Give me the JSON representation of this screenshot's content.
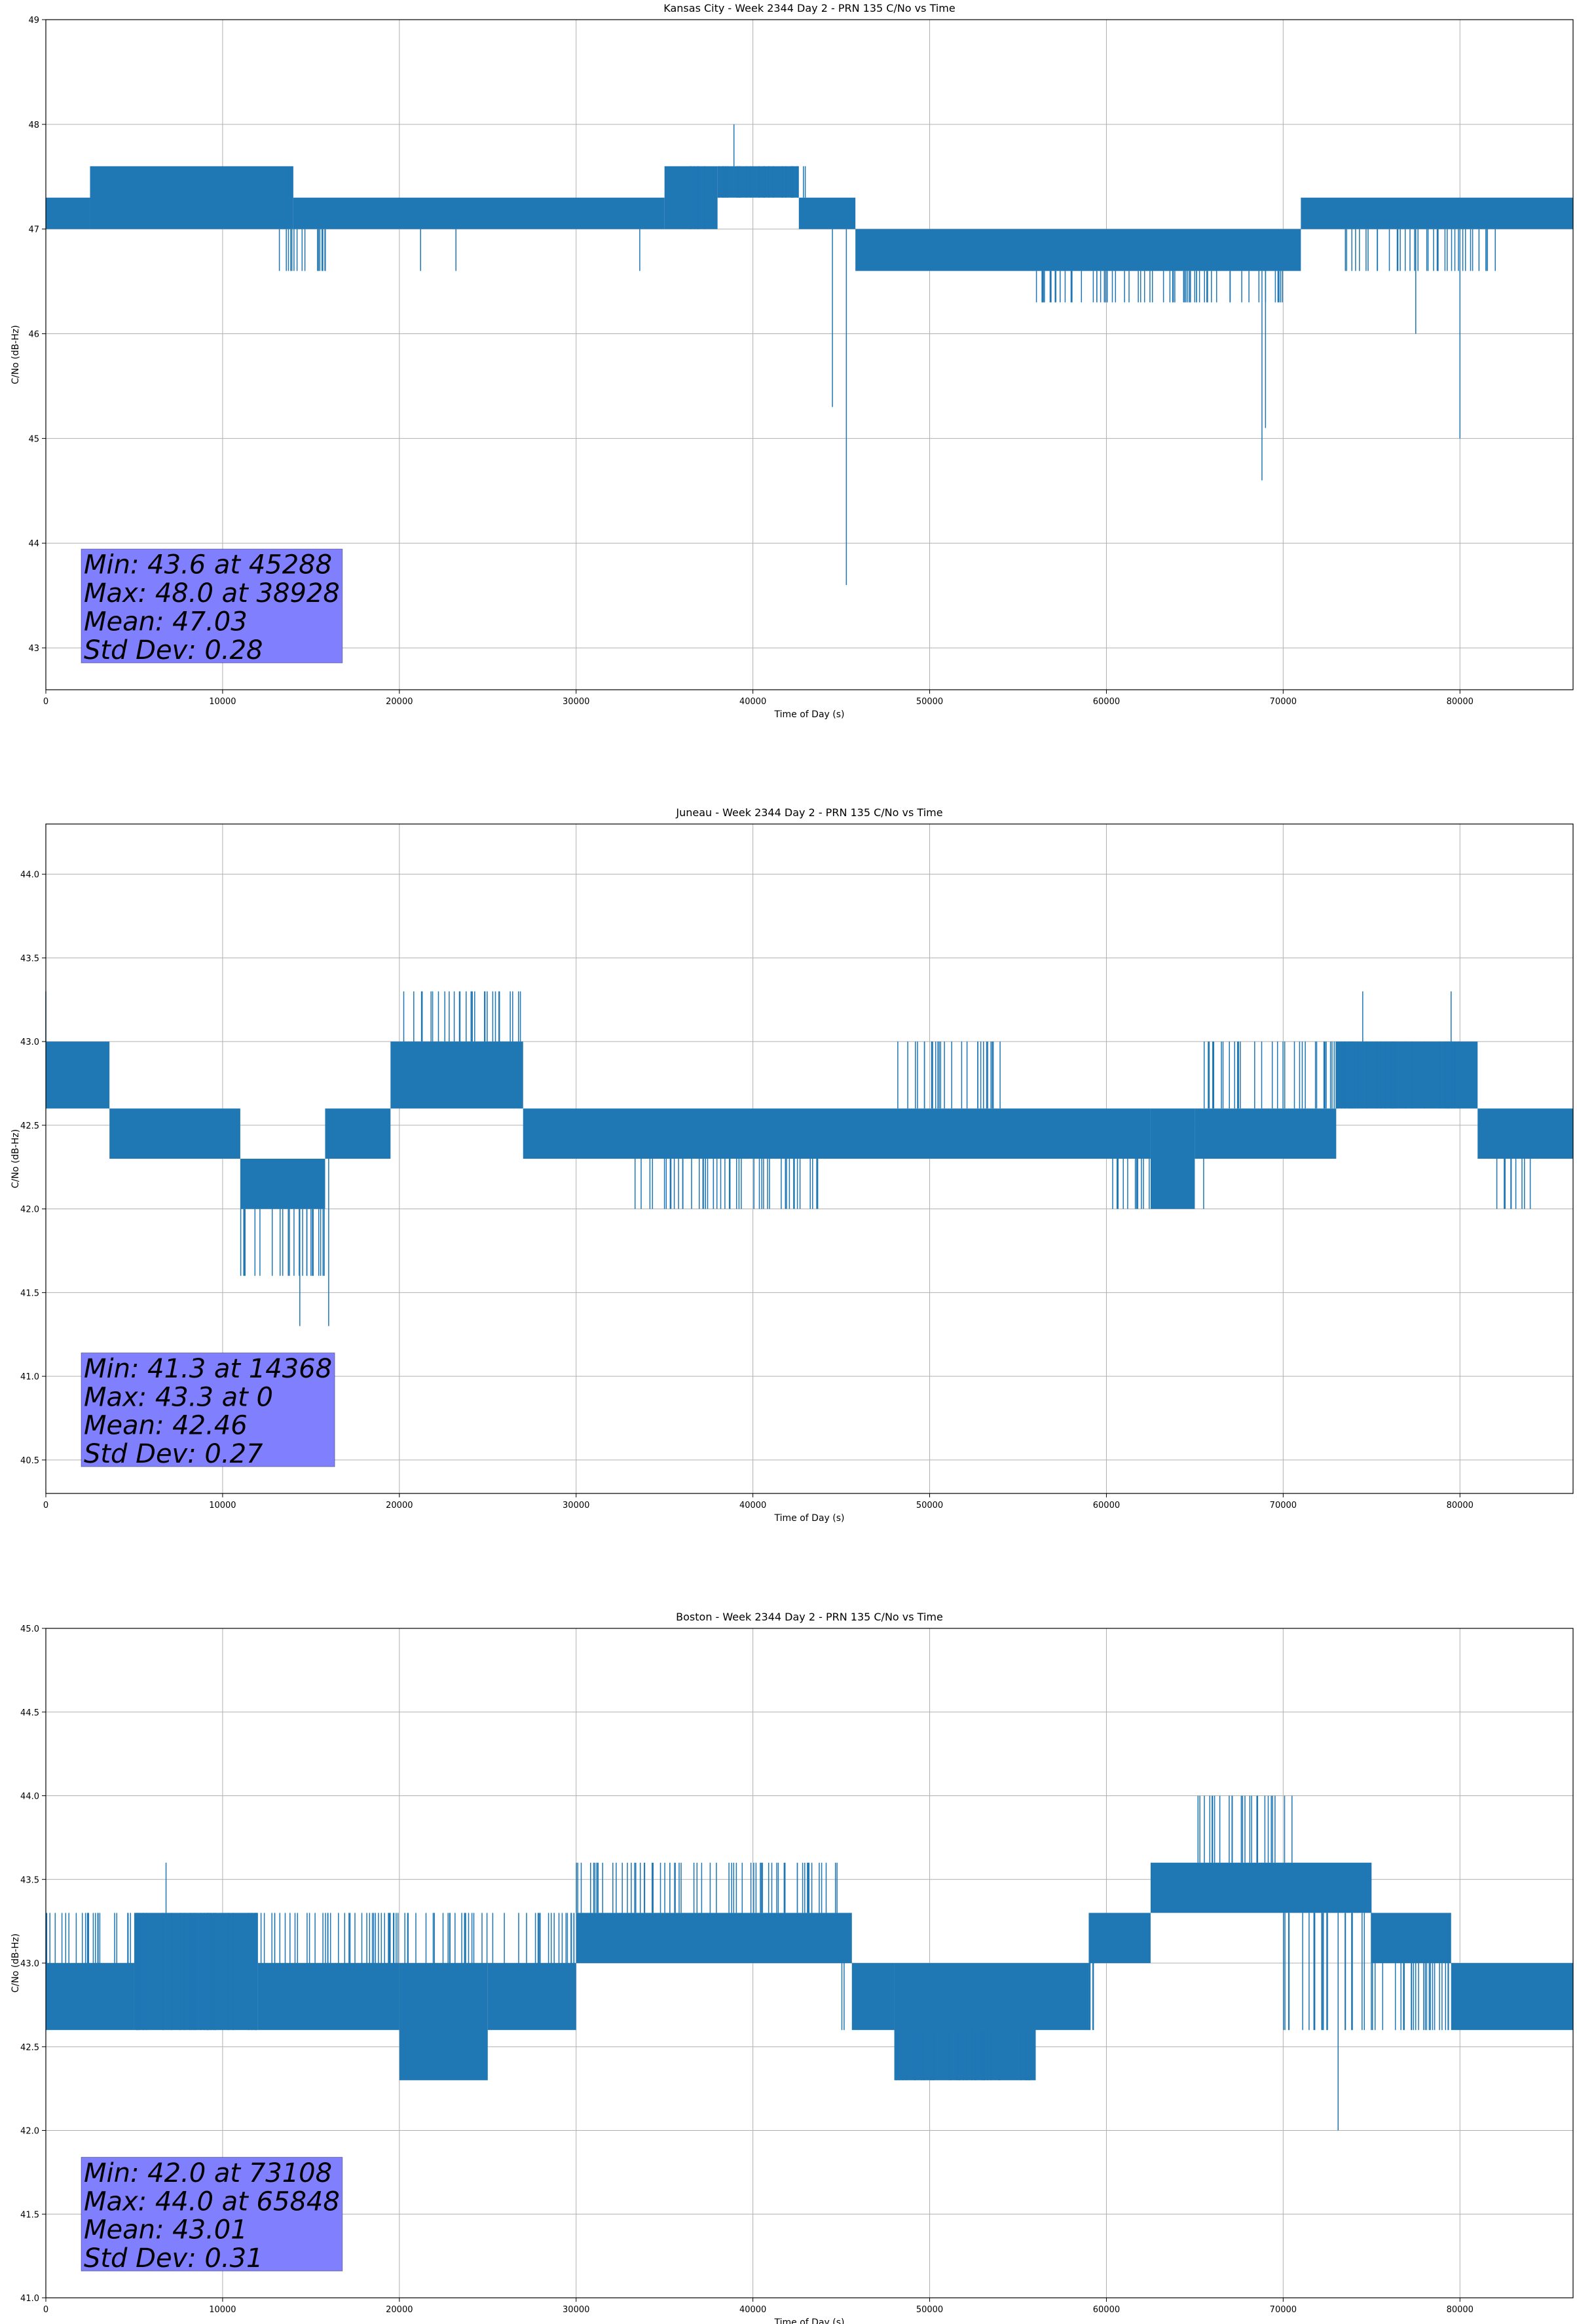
{
  "chart_data": [
    {
      "type": "line",
      "title": "Kansas City - Week 2344 Day 2 - PRN 135 C/No vs Time",
      "xlabel": "Time of Day (s)",
      "ylabel": "C/No (dB-Hz)",
      "xlim": [
        0,
        86400
      ],
      "ylim": [
        42.6,
        49.0
      ],
      "xticks": [
        0,
        10000,
        20000,
        30000,
        40000,
        50000,
        60000,
        70000,
        80000
      ],
      "xtick_labels": [
        "0",
        "10000",
        "20000",
        "30000",
        "40000",
        "50000",
        "60000",
        "70000",
        "80000"
      ],
      "yticks": [
        43,
        44,
        45,
        46,
        47,
        48,
        49
      ],
      "ytick_labels": [
        "43",
        "44",
        "45",
        "46",
        "47",
        "48",
        "49"
      ],
      "grid": true,
      "series": [
        {
          "name": "PRN 135 C/No",
          "color": "#1f77b4"
        }
      ],
      "band_segments": [
        {
          "x": [
            0,
            2500
          ],
          "y": [
            47.0,
            47.3
          ]
        },
        {
          "x": [
            2500,
            14000
          ],
          "y": [
            47.0,
            47.6
          ]
        },
        {
          "x": [
            14000,
            35000
          ],
          "y": [
            47.0,
            47.3
          ]
        },
        {
          "x": [
            35000,
            38000
          ],
          "y": [
            47.0,
            47.6
          ]
        },
        {
          "x": [
            38000,
            42600
          ],
          "y": [
            47.3,
            47.6
          ]
        },
        {
          "x": [
            42600,
            45800
          ],
          "y": [
            47.0,
            47.3
          ]
        },
        {
          "x": [
            45800,
            71000
          ],
          "y": [
            46.6,
            47.0
          ]
        },
        {
          "x": [
            71000,
            86400
          ],
          "y": [
            47.0,
            47.3
          ]
        }
      ],
      "excursions": [
        {
          "x": [
            13000,
            16500
          ],
          "y": 46.6
        },
        {
          "x": [
            36000,
            43000
          ],
          "y": 47.6
        },
        {
          "x": [
            56000,
            70000
          ],
          "y": 46.3
        },
        {
          "x": [
            73000,
            82000
          ],
          "y": 46.6
        }
      ],
      "spikes": [
        {
          "x": 45288,
          "y": 43.6
        },
        {
          "x": 44500,
          "y": 45.3
        },
        {
          "x": 38928,
          "y": 48.0
        },
        {
          "x": 68800,
          "y": 44.6
        },
        {
          "x": 69000,
          "y": 45.1
        },
        {
          "x": 80000,
          "y": 45.0
        },
        {
          "x": 77500,
          "y": 46.0
        },
        {
          "x": 33600,
          "y": 46.6
        },
        {
          "x": 21200,
          "y": 46.6
        },
        {
          "x": 23200,
          "y": 46.6
        }
      ],
      "stats": [
        "Min: 43.6 at 45288",
        "Max: 48.0 at 38928",
        "Mean: 47.03",
        "Std Dev: 0.28"
      ]
    },
    {
      "type": "line",
      "title": "Juneau - Week 2344 Day 2 - PRN 135 C/No vs Time",
      "xlabel": "Time of Day (s)",
      "ylabel": "C/No (dB-Hz)",
      "xlim": [
        0,
        86400
      ],
      "ylim": [
        40.3,
        44.3
      ],
      "xticks": [
        0,
        10000,
        20000,
        30000,
        40000,
        50000,
        60000,
        70000,
        80000
      ],
      "xtick_labels": [
        "0",
        "10000",
        "20000",
        "30000",
        "40000",
        "50000",
        "60000",
        "70000",
        "80000"
      ],
      "yticks": [
        40.5,
        41.0,
        41.5,
        42.0,
        42.5,
        43.0,
        43.5,
        44.0
      ],
      "ytick_labels": [
        "40.5",
        "41.0",
        "41.5",
        "42.0",
        "42.5",
        "43.0",
        "43.5",
        "44.0"
      ],
      "grid": true,
      "series": [
        {
          "name": "PRN 135 C/No",
          "color": "#1f77b4"
        }
      ],
      "band_segments": [
        {
          "x": [
            0,
            3600
          ],
          "y": [
            42.6,
            43.0
          ]
        },
        {
          "x": [
            3600,
            11000
          ],
          "y": [
            42.3,
            42.6
          ]
        },
        {
          "x": [
            11000,
            15800
          ],
          "y": [
            42.0,
            42.3
          ]
        },
        {
          "x": [
            15800,
            19500
          ],
          "y": [
            42.3,
            42.6
          ]
        },
        {
          "x": [
            19500,
            27000
          ],
          "y": [
            42.6,
            43.0
          ]
        },
        {
          "x": [
            27000,
            62500
          ],
          "y": [
            42.3,
            42.6
          ]
        },
        {
          "x": [
            62500,
            65000
          ],
          "y": [
            42.0,
            42.6
          ]
        },
        {
          "x": [
            65000,
            73000
          ],
          "y": [
            42.3,
            42.6
          ]
        },
        {
          "x": [
            73000,
            81000
          ],
          "y": [
            42.6,
            43.0
          ]
        },
        {
          "x": [
            81000,
            86400
          ],
          "y": [
            42.3,
            42.6
          ]
        }
      ],
      "excursions": [
        {
          "x": [
            11000,
            16000
          ],
          "y": 41.6
        },
        {
          "x": [
            20000,
            27000
          ],
          "y": 43.3
        },
        {
          "x": [
            33000,
            44000
          ],
          "y": 42.0
        },
        {
          "x": [
            48000,
            54000
          ],
          "y": 43.0
        },
        {
          "x": [
            60000,
            66000
          ],
          "y": 42.0
        },
        {
          "x": [
            65000,
            80000
          ],
          "y": 43.0
        },
        {
          "x": [
            82000,
            84000
          ],
          "y": 42.0
        }
      ],
      "spikes": [
        {
          "x": 14368,
          "y": 41.3
        },
        {
          "x": 16000,
          "y": 41.3
        },
        {
          "x": 0,
          "y": 43.3
        },
        {
          "x": 74500,
          "y": 43.3
        },
        {
          "x": 79500,
          "y": 43.3
        }
      ],
      "stats": [
        "Min: 41.3 at 14368",
        "Max: 43.3 at 0",
        "Mean: 42.46",
        "Std Dev: 0.27"
      ]
    },
    {
      "type": "line",
      "title": "Boston - Week 2344 Day 2 - PRN 135 C/No vs Time",
      "xlabel": "Time of Day (s)",
      "ylabel": "C/No (dB-Hz)",
      "xlim": [
        0,
        86400
      ],
      "ylim": [
        41.0,
        45.0
      ],
      "xticks": [
        0,
        10000,
        20000,
        30000,
        40000,
        50000,
        60000,
        70000,
        80000
      ],
      "xtick_labels": [
        "0",
        "10000",
        "20000",
        "30000",
        "40000",
        "50000",
        "60000",
        "70000",
        "80000"
      ],
      "yticks": [
        41.0,
        41.5,
        42.0,
        42.5,
        43.0,
        43.5,
        44.0,
        44.5,
        45.0
      ],
      "ytick_labels": [
        "41.0",
        "41.5",
        "42.0",
        "42.5",
        "43.0",
        "43.5",
        "44.0",
        "44.5",
        "45.0"
      ],
      "grid": true,
      "series": [
        {
          "name": "PRN 135 C/No",
          "color": "#1f77b4"
        }
      ],
      "band_segments": [
        {
          "x": [
            0,
            5000
          ],
          "y": [
            42.6,
            43.0
          ]
        },
        {
          "x": [
            5000,
            12000
          ],
          "y": [
            42.6,
            43.3
          ]
        },
        {
          "x": [
            12000,
            20000
          ],
          "y": [
            42.6,
            43.0
          ]
        },
        {
          "x": [
            20000,
            25000
          ],
          "y": [
            42.3,
            43.0
          ]
        },
        {
          "x": [
            25000,
            30000
          ],
          "y": [
            42.6,
            43.0
          ]
        },
        {
          "x": [
            30000,
            45600
          ],
          "y": [
            43.0,
            43.3
          ]
        },
        {
          "x": [
            45600,
            48000
          ],
          "y": [
            42.6,
            43.0
          ]
        },
        {
          "x": [
            48000,
            56000
          ],
          "y": [
            42.3,
            43.0
          ]
        },
        {
          "x": [
            56000,
            59000
          ],
          "y": [
            42.6,
            43.0
          ]
        },
        {
          "x": [
            59000,
            62500
          ],
          "y": [
            43.0,
            43.3
          ]
        },
        {
          "x": [
            62500,
            75000
          ],
          "y": [
            43.3,
            43.6
          ]
        },
        {
          "x": [
            75000,
            79500
          ],
          "y": [
            43.0,
            43.3
          ]
        },
        {
          "x": [
            79500,
            86400
          ],
          "y": [
            42.6,
            43.0
          ]
        }
      ],
      "excursions": [
        {
          "x": [
            0,
            30000
          ],
          "y": 43.3
        },
        {
          "x": [
            30000,
            45000
          ],
          "y": 43.6
        },
        {
          "x": [
            45000,
            60000
          ],
          "y": 42.6
        },
        {
          "x": [
            65000,
            70500
          ],
          "y": 44.0
        },
        {
          "x": [
            70000,
            80000
          ],
          "y": 42.6
        }
      ],
      "spikes": [
        {
          "x": 73108,
          "y": 42.0
        },
        {
          "x": 65848,
          "y": 44.0
        },
        {
          "x": 6800,
          "y": 43.6
        }
      ],
      "stats": [
        "Min: 42.0 at 73108",
        "Max: 44.0 at 65848",
        "Mean: 43.01",
        "Std Dev: 0.31"
      ]
    }
  ]
}
